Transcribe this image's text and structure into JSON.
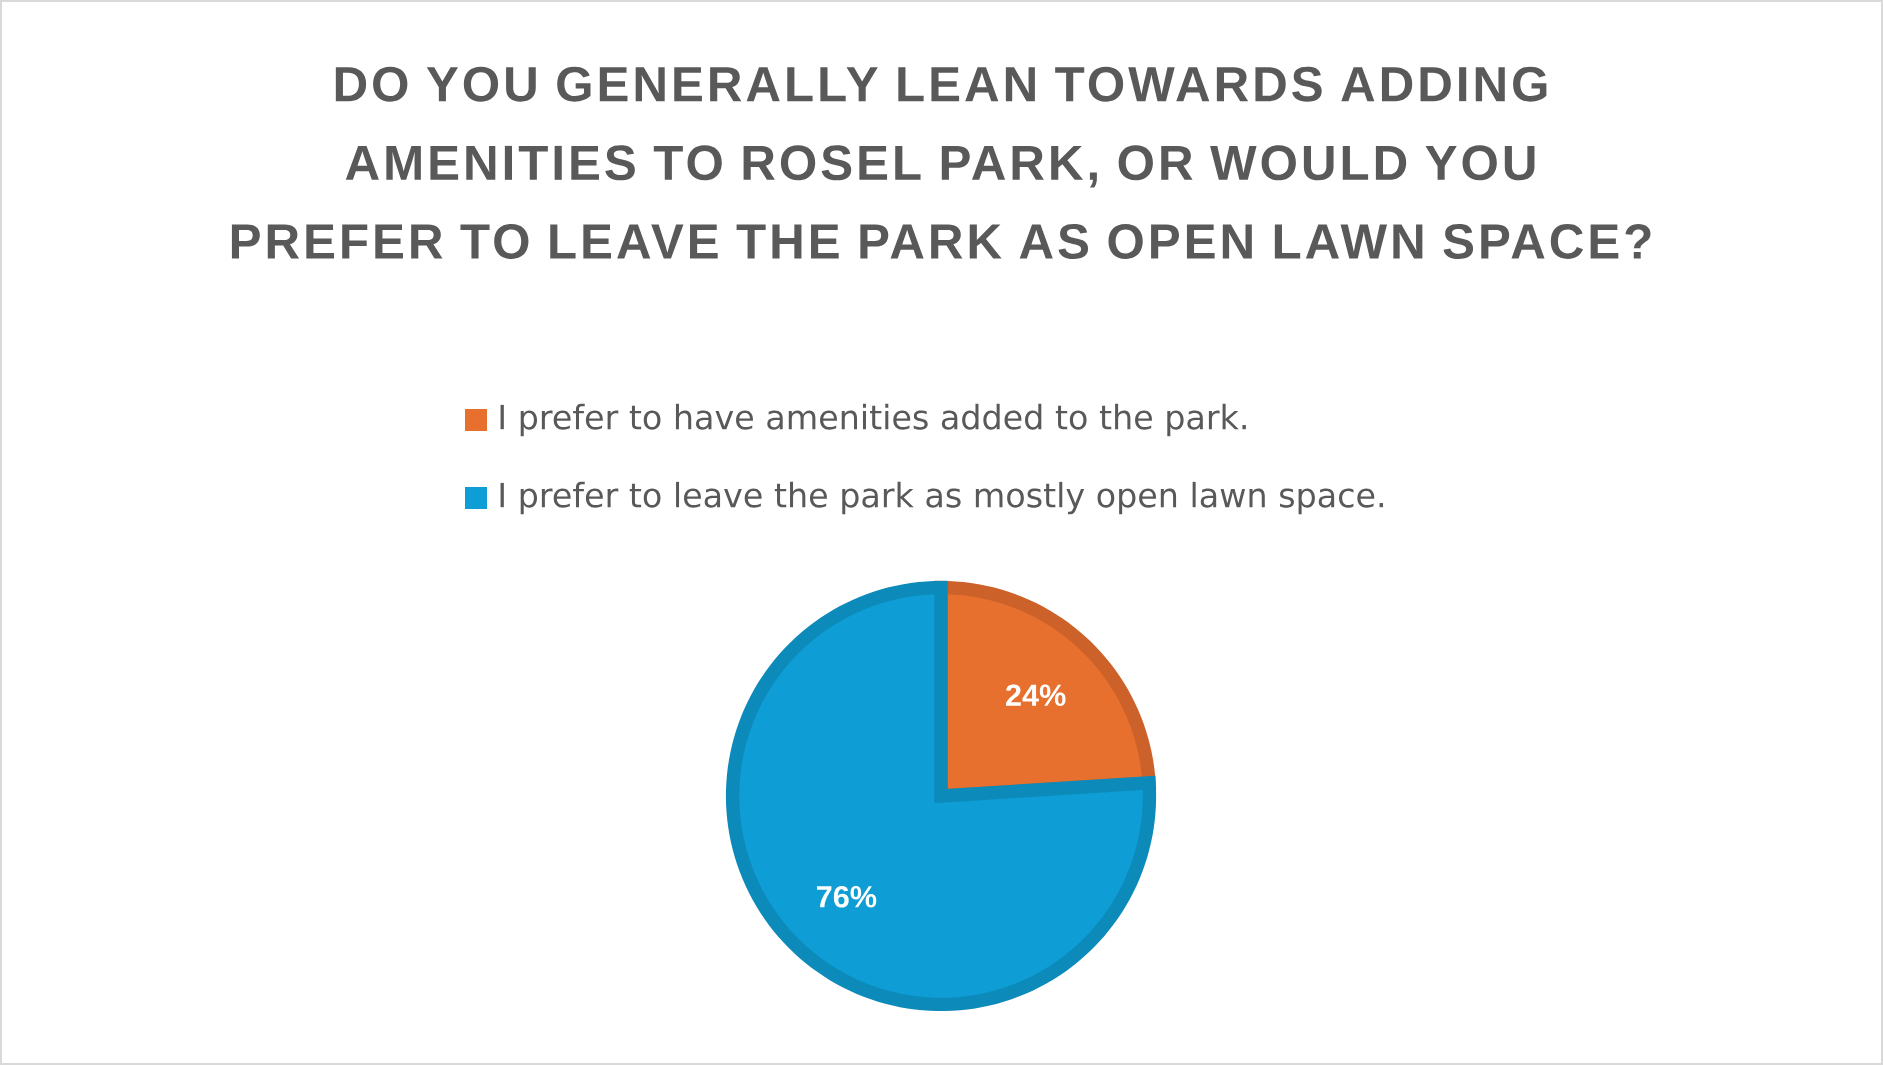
{
  "chart_data": {
    "type": "pie",
    "title": "DO YOU GENERALLY LEAN TOWARDS ADDING AMENITIES TO ROSEL PARK, OR WOULD YOU PREFER TO LEAVE THE PARK AS OPEN LAWN SPACE?",
    "categories": [
      "I prefer to have amenities added to the park.",
      "I prefer to leave the park as mostly open lawn space."
    ],
    "values": [
      24,
      76
    ],
    "colors": [
      "#e8702f",
      "#0e9dd4"
    ],
    "value_labels": [
      "24%",
      "76%"
    ],
    "legend": "top"
  }
}
